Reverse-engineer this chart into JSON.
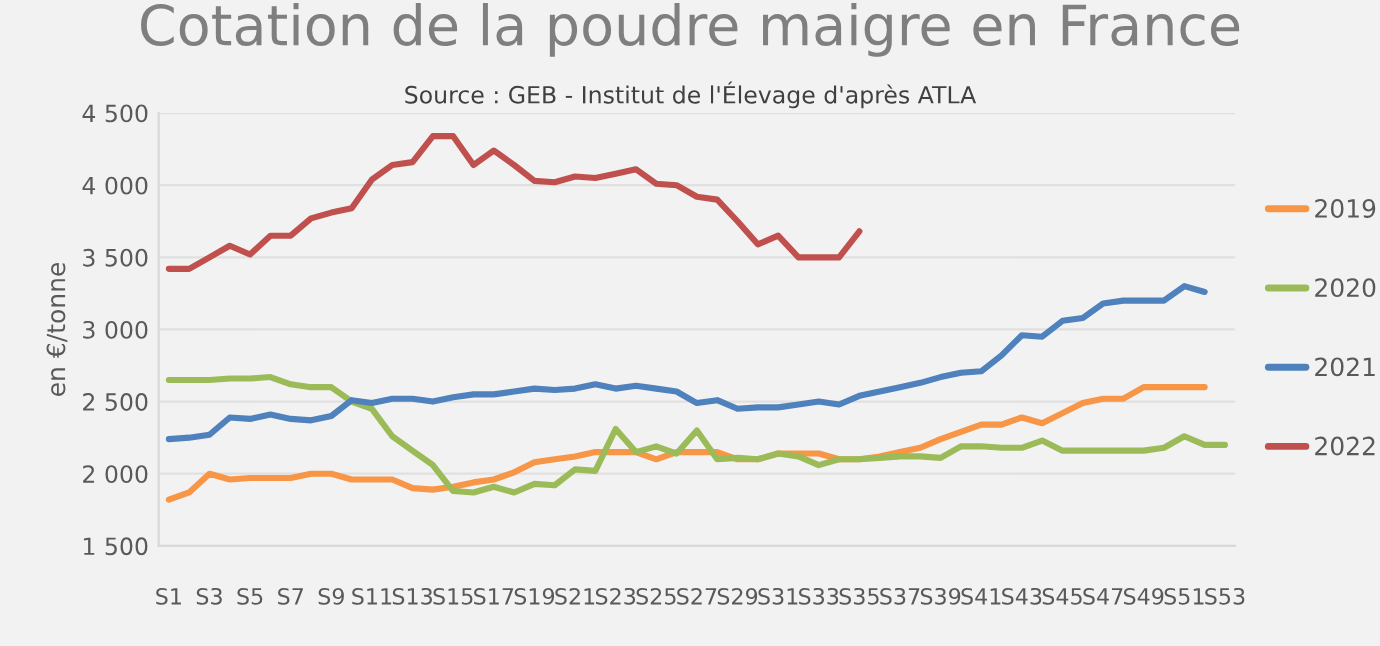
{
  "chart_data": {
    "type": "line",
    "title": "Cotation de la poudre maigre en France",
    "subtitle": "Source : GEB - Institut de l'Élevage d'après ATLA",
    "ylabel": "en €/tonne",
    "categories": [
      "S1",
      null,
      "S3",
      null,
      "S5",
      null,
      "S7",
      null,
      "S9",
      null,
      "S11",
      null,
      "S13",
      null,
      "S15",
      null,
      "S17",
      null,
      "S19",
      null,
      "S21",
      null,
      "S23",
      null,
      "S25",
      null,
      "S27",
      null,
      "S29",
      null,
      "S31",
      null,
      "S33",
      null,
      "S35",
      null,
      "S37",
      null,
      "S39",
      null,
      "S41",
      null,
      "S43",
      null,
      "S45",
      null,
      "S47",
      null,
      "S49",
      null,
      "S51",
      null,
      "S53"
    ],
    "series": [
      {
        "name": "2019",
        "color": "#f79646",
        "values": [
          1820,
          1870,
          2000,
          1960,
          1970,
          1970,
          1970,
          2000,
          2000,
          1960,
          1960,
          1960,
          1900,
          1890,
          1910,
          1940,
          1960,
          2010,
          2080,
          2100,
          2120,
          2150,
          2150,
          2150,
          2100,
          2150,
          2150,
          2150,
          2100,
          2100,
          2140,
          2140,
          2140,
          2100,
          2100,
          2120,
          2150,
          2180,
          2240,
          2290,
          2340,
          2340,
          2390,
          2350,
          2420,
          2490,
          2520,
          2520,
          2600,
          2600,
          2600,
          2600,
          null
        ]
      },
      {
        "name": "2020",
        "color": "#9bbb59",
        "values": [
          2650,
          2650,
          2650,
          2660,
          2660,
          2670,
          2620,
          2600,
          2600,
          2500,
          2450,
          2260,
          2160,
          2060,
          1880,
          1870,
          1910,
          1870,
          1930,
          1920,
          2030,
          2020,
          2310,
          2150,
          2190,
          2140,
          2300,
          2100,
          2110,
          2100,
          2140,
          2120,
          2060,
          2100,
          2100,
          2110,
          2120,
          2120,
          2110,
          2190,
          2190,
          2180,
          2180,
          2230,
          2160,
          2160,
          2160,
          2160,
          2160,
          2180,
          2260,
          2200,
          2200
        ]
      },
      {
        "name": "2021",
        "color": "#4f81bd",
        "values": [
          2240,
          2250,
          2270,
          2390,
          2380,
          2410,
          2380,
          2370,
          2400,
          2510,
          2490,
          2520,
          2520,
          2500,
          2530,
          2550,
          2550,
          2570,
          2590,
          2580,
          2590,
          2620,
          2590,
          2610,
          2590,
          2570,
          2490,
          2510,
          2450,
          2460,
          2460,
          2480,
          2500,
          2480,
          2540,
          2570,
          2600,
          2630,
          2670,
          2700,
          2710,
          2820,
          2960,
          2950,
          3060,
          3080,
          3180,
          3200,
          3200,
          3200,
          3300,
          3260,
          null
        ]
      },
      {
        "name": "2022",
        "color": "#c0504d",
        "values": [
          3420,
          3420,
          3500,
          3580,
          3520,
          3650,
          3650,
          3770,
          3810,
          3840,
          4040,
          4140,
          4160,
          4340,
          4340,
          4140,
          4240,
          4140,
          4030,
          4020,
          4060,
          4050,
          4080,
          4110,
          4010,
          4000,
          3920,
          3900,
          3750,
          3590,
          3650,
          3500,
          3500,
          3500,
          3680,
          null,
          null,
          null,
          null,
          null,
          null,
          null,
          null,
          null,
          null,
          null,
          null,
          null,
          null,
          null,
          null,
          null,
          null
        ]
      }
    ],
    "ylim": [
      1500,
      4500
    ],
    "yticks": [
      {
        "value": 1500,
        "label": "1 500"
      },
      {
        "value": 2000,
        "label": "2 000"
      },
      {
        "value": 2500,
        "label": "2 500"
      },
      {
        "value": 3000,
        "label": "3 000"
      },
      {
        "value": 3500,
        "label": "3 500"
      },
      {
        "value": 4000,
        "label": "4 000"
      },
      {
        "value": 4500,
        "label": "4 500"
      }
    ],
    "grid": "y",
    "legend": "right",
    "marker": "none",
    "line_style": "solid"
  }
}
